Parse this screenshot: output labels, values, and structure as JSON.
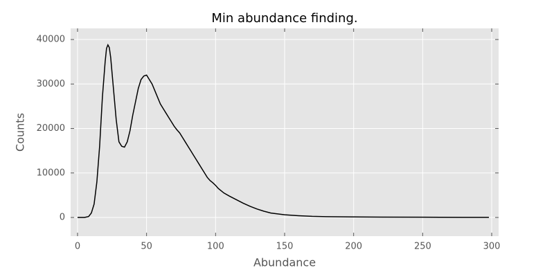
{
  "chart_data": {
    "type": "line",
    "title": "Min abundance finding.",
    "x_label": "Abundance",
    "y_label": "Counts",
    "x": [
      0,
      5,
      8,
      10,
      12,
      14,
      16,
      18,
      20,
      21,
      22,
      23,
      24,
      26,
      28,
      30,
      32,
      34,
      36,
      38,
      40,
      42,
      44,
      46,
      48,
      50,
      52,
      54,
      56,
      58,
      60,
      62,
      64,
      66,
      68,
      70,
      72,
      74,
      76,
      78,
      80,
      82,
      84,
      86,
      88,
      90,
      92,
      94,
      96,
      98,
      100,
      102,
      104,
      106,
      110,
      115,
      120,
      125,
      130,
      135,
      140,
      145,
      150,
      160,
      170,
      180,
      200,
      220,
      250,
      280,
      298
    ],
    "series": [
      {
        "name": "counts",
        "color": "#000000",
        "values": [
          0,
          0,
          200,
          1000,
          3000,
          8000,
          16000,
          27000,
          35000,
          38000,
          38800,
          38200,
          36000,
          29000,
          22000,
          17000,
          16000,
          15800,
          17000,
          19500,
          23000,
          26000,
          29000,
          31000,
          31800,
          32000,
          31000,
          30000,
          28500,
          27000,
          25500,
          24500,
          23500,
          22500,
          21500,
          20500,
          19700,
          19000,
          18000,
          17000,
          16000,
          15000,
          14000,
          13000,
          12000,
          11000,
          10000,
          9000,
          8300,
          7800,
          7200,
          6500,
          6000,
          5500,
          4800,
          4000,
          3200,
          2500,
          1900,
          1400,
          1000,
          800,
          600,
          400,
          250,
          180,
          120,
          80,
          60,
          30,
          20
        ]
      }
    ],
    "xlim": [
      -5,
      305
    ],
    "ylim": [
      -4200,
      42500
    ],
    "xticks": [
      0,
      50,
      100,
      150,
      200,
      250,
      300
    ],
    "yticks": [
      0,
      10000,
      20000,
      30000,
      40000
    ],
    "grid": true
  }
}
